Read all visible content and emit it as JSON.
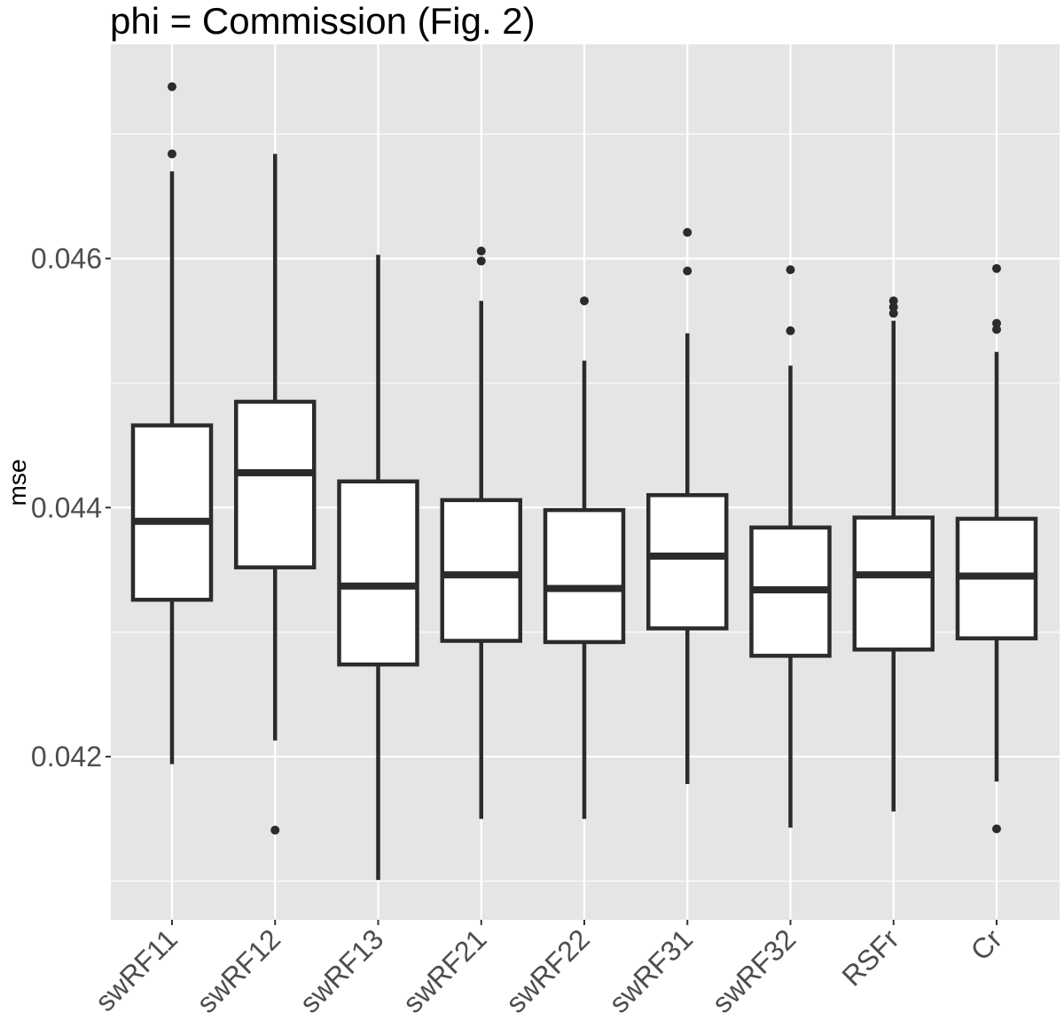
{
  "chart_data": {
    "type": "boxplot",
    "title": "phi = Commission (Fig. 2)",
    "xlabel": "",
    "ylabel": "mse",
    "ylim": [
      0.04069,
      0.04772
    ],
    "yticks": [
      0.042,
      0.044,
      0.046
    ],
    "ytick_labels": [
      "0.042",
      "0.044",
      "0.046"
    ],
    "grid": true,
    "legend": "none",
    "colors": {
      "panel": "#e5e5e5",
      "grid": "#ffffff",
      "box_fill": "#ffffff",
      "box_line": "#2b2b2b",
      "tick_text": "#4d4d4d",
      "page": "#ffffff"
    },
    "categories": [
      "swRF11",
      "swRF12",
      "swRF13",
      "swRF21",
      "swRF22",
      "swRF31",
      "swRF32",
      "RSFr",
      "Cr"
    ],
    "boxes": [
      {
        "category": "swRF11",
        "whisker_low": 0.04194,
        "q1": 0.04326,
        "median": 0.04389,
        "q3": 0.04466,
        "whisker_high": 0.0467,
        "outliers": [
          0.04738,
          0.04684
        ]
      },
      {
        "category": "swRF12",
        "whisker_low": 0.04213,
        "q1": 0.04352,
        "median": 0.04428,
        "q3": 0.04485,
        "whisker_high": 0.04684,
        "outliers": [
          0.04141
        ]
      },
      {
        "category": "swRF13",
        "whisker_low": 0.04101,
        "q1": 0.04274,
        "median": 0.04337,
        "q3": 0.04421,
        "whisker_high": 0.04603,
        "outliers": []
      },
      {
        "category": "swRF21",
        "whisker_low": 0.0415,
        "q1": 0.04293,
        "median": 0.04346,
        "q3": 0.04406,
        "whisker_high": 0.04566,
        "outliers": [
          0.04606,
          0.04598
        ]
      },
      {
        "category": "swRF22",
        "whisker_low": 0.0415,
        "q1": 0.04292,
        "median": 0.04335,
        "q3": 0.04398,
        "whisker_high": 0.04518,
        "outliers": [
          0.04566
        ]
      },
      {
        "category": "swRF31",
        "whisker_low": 0.04178,
        "q1": 0.04303,
        "median": 0.04361,
        "q3": 0.0441,
        "whisker_high": 0.0454,
        "outliers": [
          0.04621,
          0.0459
        ]
      },
      {
        "category": "swRF32",
        "whisker_low": 0.04143,
        "q1": 0.04281,
        "median": 0.04334,
        "q3": 0.04384,
        "whisker_high": 0.04514,
        "outliers": [
          0.04591,
          0.04542
        ]
      },
      {
        "category": "RSFr",
        "whisker_low": 0.04156,
        "q1": 0.04286,
        "median": 0.04346,
        "q3": 0.04392,
        "whisker_high": 0.0455,
        "outliers": [
          0.04566,
          0.04561,
          0.04556
        ]
      },
      {
        "category": "Cr",
        "whisker_low": 0.0418,
        "q1": 0.04295,
        "median": 0.04345,
        "q3": 0.04391,
        "whisker_high": 0.04525,
        "outliers": [
          0.04592,
          0.04548,
          0.04543,
          0.04142
        ]
      }
    ]
  }
}
